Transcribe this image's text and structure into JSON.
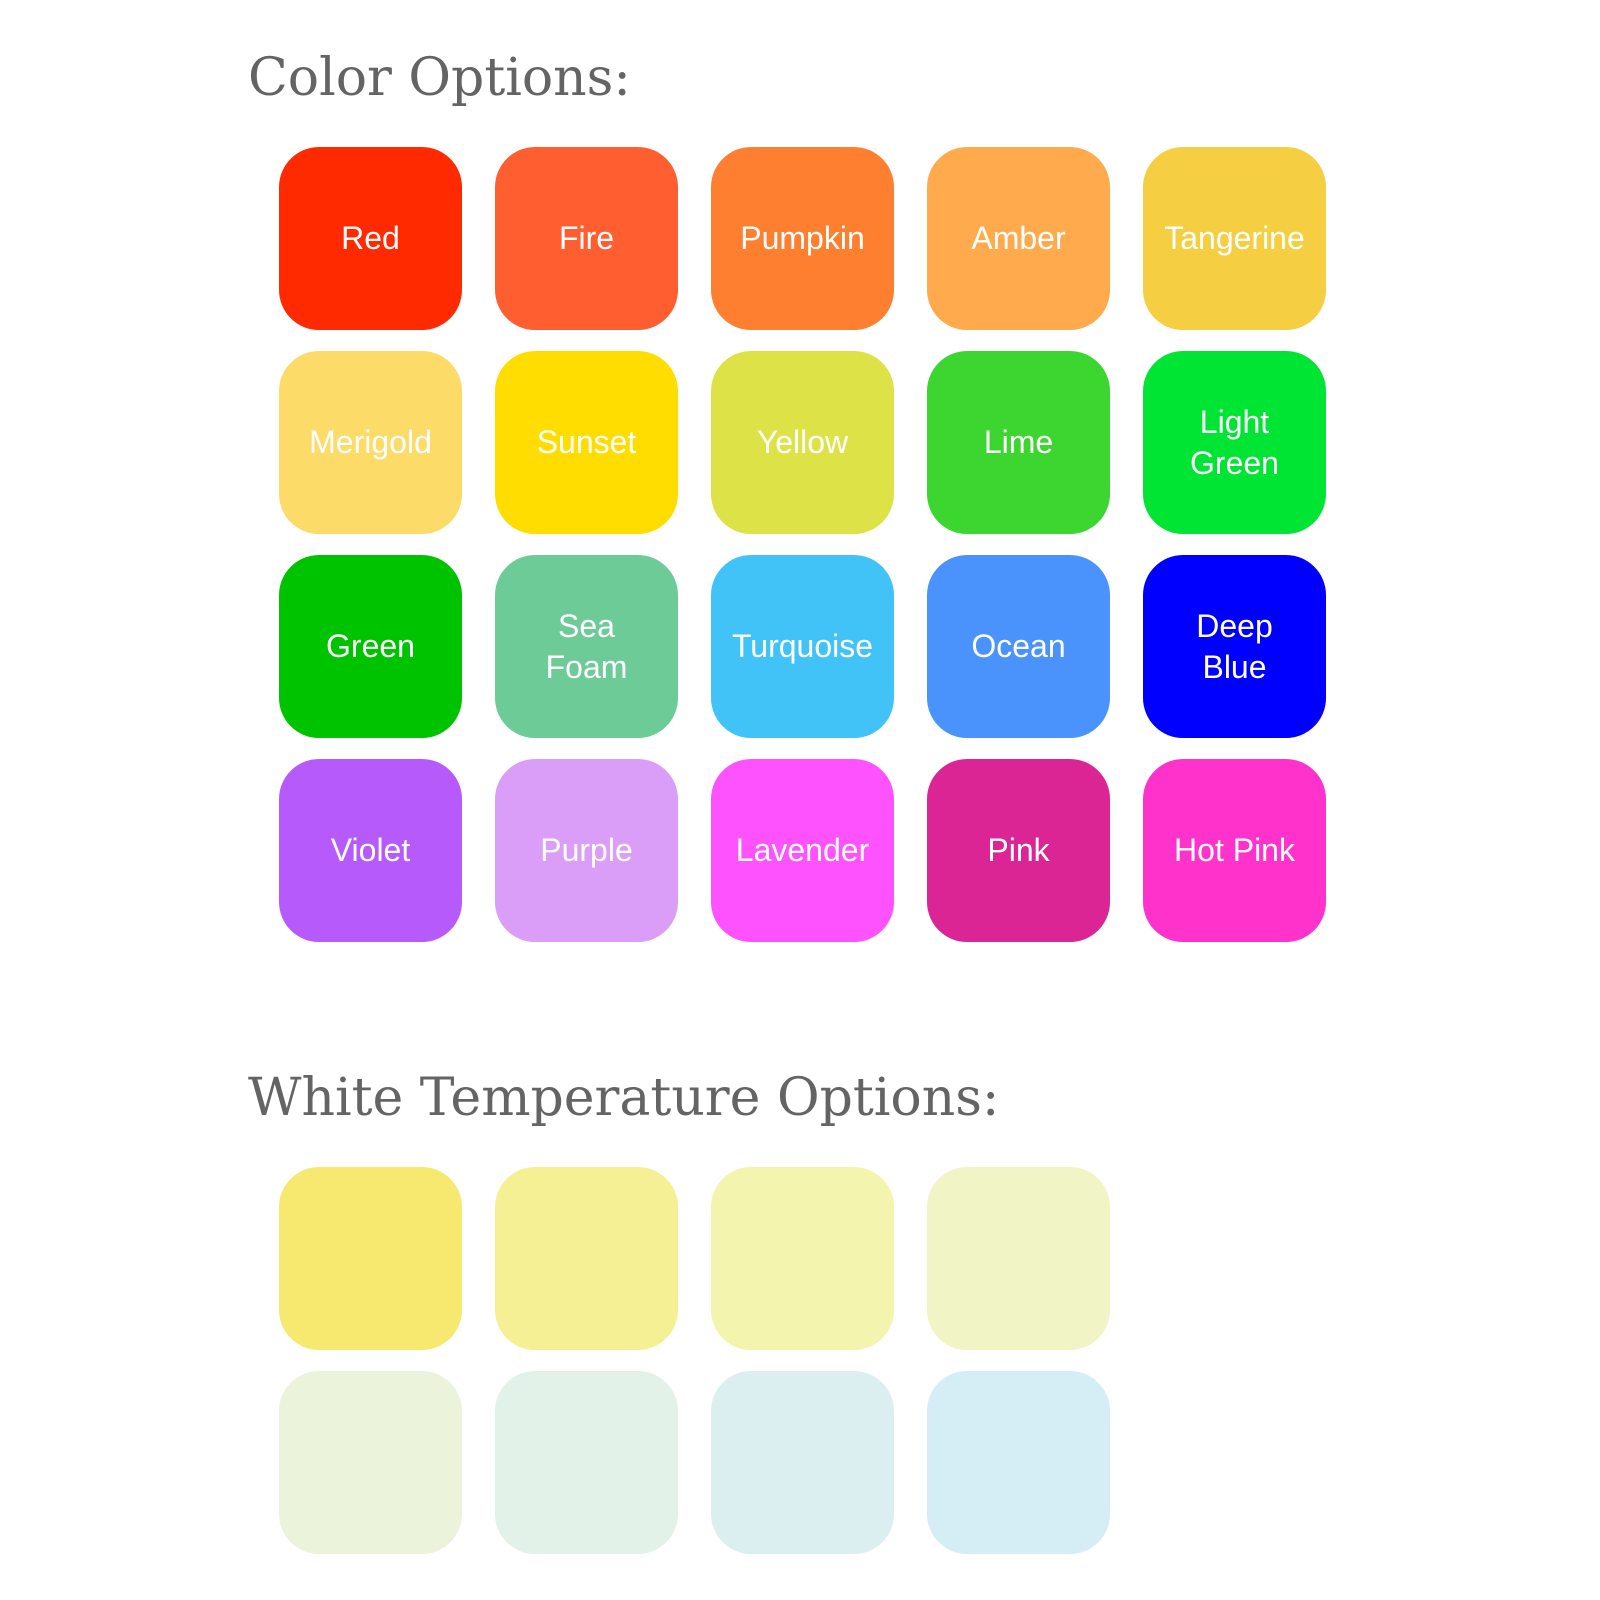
{
  "color_section": {
    "title": "Color Options:",
    "options": [
      {
        "label": "Red",
        "color": "#FF2A00"
      },
      {
        "label": "Fire",
        "color": "#FF5E30"
      },
      {
        "label": "Pumpkin",
        "color": "#FF7F30"
      },
      {
        "label": "Amber",
        "color": "#FFAB4D"
      },
      {
        "label": "Tangerine",
        "color": "#F5CE42"
      },
      {
        "label": "Merigold",
        "color": "#FCDB68"
      },
      {
        "label": "Sunset",
        "color": "#FFDD00"
      },
      {
        "label": "Yellow",
        "color": "#DDE346"
      },
      {
        "label": "Lime",
        "color": "#3DD631"
      },
      {
        "label": "Light Green",
        "color": "#00E533"
      },
      {
        "label": "Green",
        "color": "#00C300"
      },
      {
        "label": "Sea Foam",
        "color": "#6DCB98"
      },
      {
        "label": "Turquoise",
        "color": "#42C3F7"
      },
      {
        "label": "Ocean",
        "color": "#4A93FC"
      },
      {
        "label": "Deep Blue",
        "color": "#0000FF"
      },
      {
        "label": "Violet",
        "color": "#B75AFC"
      },
      {
        "label": "Purple",
        "color": "#DA9EF8"
      },
      {
        "label": "Lavender",
        "color": "#FF52FF"
      },
      {
        "label": "Pink",
        "color": "#DC2595"
      },
      {
        "label": "Hot Pink",
        "color": "#FF33CC"
      }
    ]
  },
  "white_section": {
    "title": "White Temperature Options:",
    "options": [
      {
        "color": "#F7E86F"
      },
      {
        "color": "#F5F093"
      },
      {
        "color": "#F3F4AE"
      },
      {
        "color": "#F1F4C4"
      },
      {
        "color": "#ECF3DB"
      },
      {
        "color": "#E2F2E8"
      },
      {
        "color": "#DCEFF0"
      },
      {
        "color": "#D5EDF4"
      }
    ]
  }
}
